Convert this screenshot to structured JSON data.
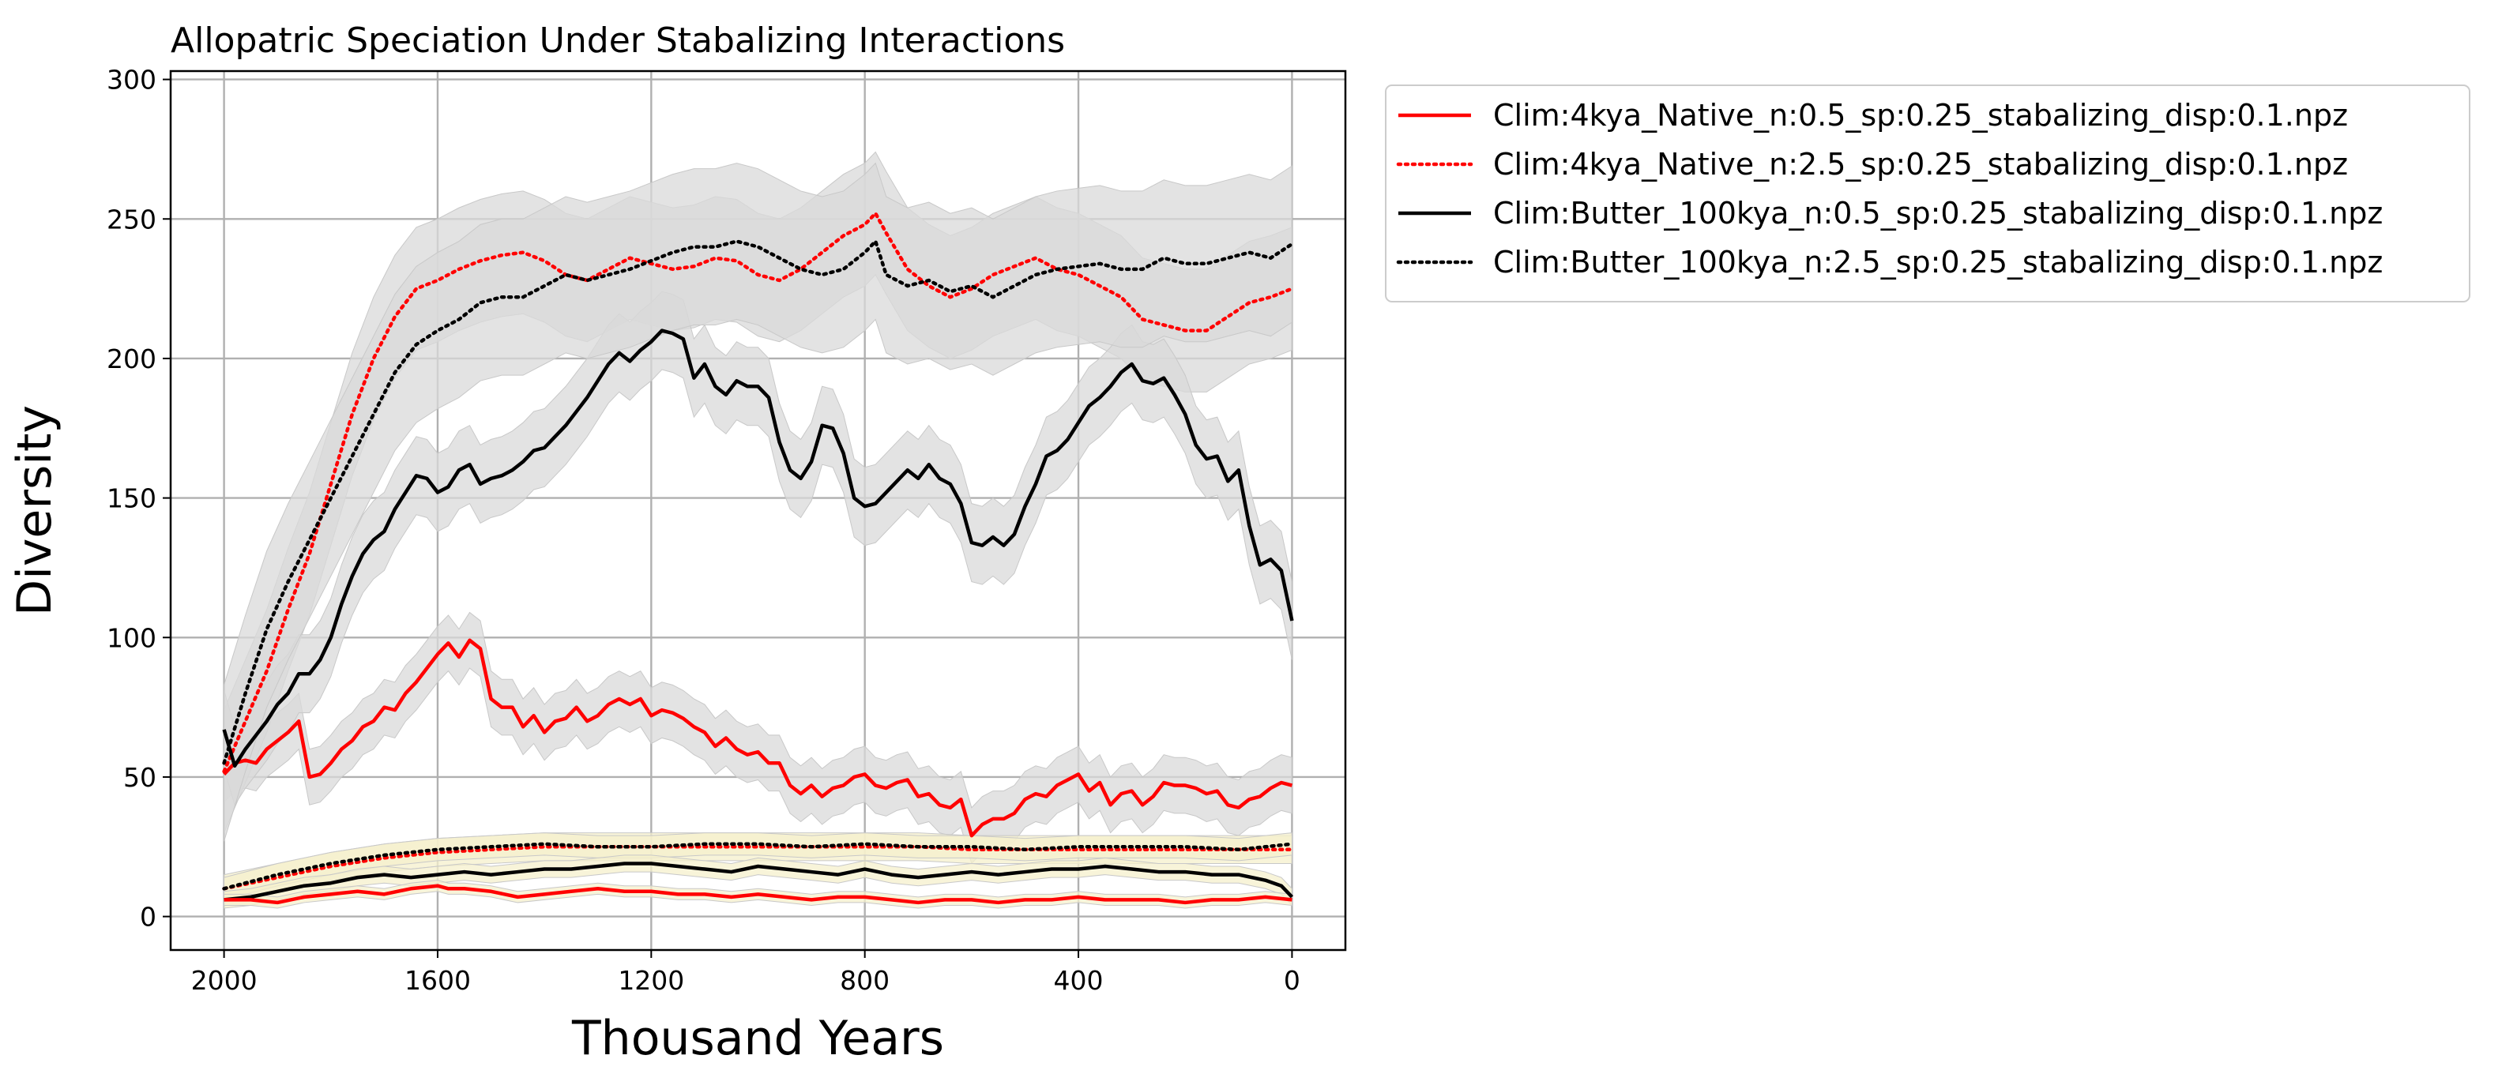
{
  "chart_data": {
    "type": "line",
    "title": "Allopatric Speciation Under Stabalizing Interactions",
    "xlabel": "Thousand Years",
    "ylabel": "Diversity",
    "xlim": [
      2100,
      -100
    ],
    "ylim": [
      -12,
      303
    ],
    "x_reversed": true,
    "xticks": [
      2000,
      1600,
      1200,
      800,
      400,
      0
    ],
    "yticks": [
      0,
      50,
      100,
      150,
      200,
      250,
      300
    ],
    "grid": true,
    "legend_position": "outside-right-top",
    "series": [
      {
        "name": "Clim:4kya_Native_n:0.5_sp:0.25_stabalizing_disp:0.1.npz",
        "color": "#ff0000",
        "style": "solid",
        "band_color": "#d9d9d9",
        "band_width": 10,
        "x": [
          2000,
          1980,
          1960,
          1940,
          1920,
          1900,
          1880,
          1860,
          1840,
          1820,
          1800,
          1780,
          1760,
          1740,
          1720,
          1700,
          1680,
          1660,
          1640,
          1620,
          1600,
          1580,
          1560,
          1540,
          1520,
          1500,
          1480,
          1460,
          1440,
          1420,
          1400,
          1380,
          1360,
          1340,
          1320,
          1300,
          1280,
          1260,
          1240,
          1220,
          1200,
          1180,
          1160,
          1140,
          1120,
          1100,
          1080,
          1060,
          1040,
          1020,
          1000,
          980,
          960,
          940,
          920,
          900,
          880,
          860,
          840,
          820,
          800,
          780,
          760,
          740,
          720,
          700,
          680,
          660,
          640,
          620,
          600,
          580,
          560,
          540,
          520,
          500,
          480,
          460,
          440,
          420,
          400,
          380,
          360,
          340,
          320,
          300,
          280,
          260,
          240,
          220,
          200,
          180,
          160,
          140,
          120,
          100,
          80,
          60,
          40,
          20,
          0
        ],
        "values": [
          51,
          55,
          56,
          55,
          60,
          63,
          66,
          70,
          50,
          51,
          55,
          60,
          63,
          68,
          70,
          75,
          74,
          80,
          84,
          89,
          94,
          98,
          93,
          99,
          96,
          78,
          75,
          75,
          68,
          72,
          66,
          70,
          71,
          75,
          70,
          72,
          76,
          78,
          76,
          78,
          72,
          74,
          73,
          71,
          68,
          66,
          61,
          64,
          60,
          58,
          59,
          55,
          55,
          47,
          44,
          47,
          43,
          46,
          47,
          50,
          51,
          47,
          46,
          48,
          49,
          43,
          44,
          40,
          39,
          42,
          29,
          33,
          35,
          35,
          37,
          42,
          44,
          43,
          47,
          49,
          51,
          45,
          48,
          40,
          44,
          45,
          40,
          43,
          48,
          47,
          47,
          46,
          44,
          45,
          40,
          39,
          42,
          43,
          46,
          48,
          47
        ]
      },
      {
        "name": "Clim:4kya_Native_n:2.5_sp:0.25_stabalizing_disp:0.1.npz",
        "color": "#ff0000",
        "style": "dotted",
        "band_color": "#d9d9d9",
        "band_width": 22,
        "x": [
          2000,
          1960,
          1920,
          1880,
          1840,
          1800,
          1760,
          1720,
          1680,
          1640,
          1600,
          1560,
          1520,
          1480,
          1440,
          1400,
          1360,
          1320,
          1280,
          1240,
          1200,
          1160,
          1120,
          1080,
          1040,
          1000,
          960,
          920,
          880,
          840,
          800,
          780,
          760,
          720,
          680,
          640,
          600,
          560,
          520,
          480,
          440,
          400,
          360,
          320,
          280,
          240,
          200,
          160,
          120,
          80,
          40,
          0
        ],
        "values": [
          52,
          70,
          88,
          110,
          130,
          155,
          180,
          200,
          215,
          225,
          228,
          232,
          235,
          237,
          238,
          235,
          230,
          228,
          232,
          236,
          234,
          232,
          233,
          236,
          235,
          230,
          228,
          232,
          238,
          244,
          248,
          252,
          245,
          232,
          226,
          222,
          225,
          230,
          233,
          236,
          232,
          230,
          226,
          222,
          214,
          212,
          210,
          210,
          215,
          220,
          222,
          225
        ]
      },
      {
        "name": "Clim:Butter_100kya_n:0.5_sp:0.25_stabalizing_disp:0.1.npz",
        "color": "#000000",
        "style": "solid",
        "band_color": "#d9d9d9",
        "band_width": 14,
        "x": [
          2000,
          1980,
          1960,
          1940,
          1920,
          1900,
          1880,
          1860,
          1840,
          1820,
          1800,
          1780,
          1760,
          1740,
          1720,
          1700,
          1680,
          1660,
          1640,
          1620,
          1600,
          1580,
          1560,
          1540,
          1520,
          1500,
          1480,
          1460,
          1440,
          1420,
          1400,
          1380,
          1360,
          1340,
          1320,
          1300,
          1280,
          1260,
          1240,
          1220,
          1200,
          1180,
          1160,
          1140,
          1120,
          1100,
          1080,
          1060,
          1040,
          1020,
          1000,
          980,
          960,
          940,
          920,
          900,
          880,
          860,
          840,
          820,
          800,
          780,
          760,
          740,
          720,
          700,
          680,
          660,
          640,
          620,
          600,
          580,
          560,
          540,
          520,
          500,
          480,
          460,
          440,
          420,
          400,
          380,
          360,
          340,
          320,
          300,
          280,
          260,
          240,
          220,
          200,
          180,
          160,
          140,
          120,
          100,
          80,
          60,
          40,
          20,
          0
        ],
        "values": [
          67,
          54,
          60,
          65,
          70,
          76,
          80,
          87,
          87,
          92,
          100,
          112,
          122,
          130,
          135,
          138,
          146,
          152,
          158,
          157,
          152,
          154,
          160,
          162,
          155,
          157,
          158,
          160,
          163,
          167,
          168,
          172,
          176,
          181,
          186,
          192,
          198,
          202,
          199,
          203,
          206,
          210,
          209,
          207,
          193,
          198,
          190,
          187,
          192,
          190,
          190,
          186,
          170,
          160,
          157,
          163,
          176,
          175,
          166,
          150,
          147,
          148,
          152,
          156,
          160,
          157,
          162,
          157,
          155,
          148,
          134,
          133,
          136,
          133,
          137,
          147,
          155,
          165,
          167,
          171,
          177,
          183,
          186,
          190,
          195,
          198,
          192,
          191,
          193,
          187,
          180,
          169,
          164,
          165,
          156,
          160,
          140,
          126,
          128,
          124,
          106
        ]
      },
      {
        "name": "Clim:Butter_100kya_n:2.5_sp:0.25_stabalizing_disp:0.1.npz",
        "color": "#000000",
        "style": "dotted",
        "band_color": "#d9d9d9",
        "band_width": 28,
        "x": [
          2000,
          1960,
          1920,
          1880,
          1840,
          1800,
          1760,
          1720,
          1680,
          1640,
          1600,
          1560,
          1520,
          1480,
          1440,
          1400,
          1360,
          1320,
          1280,
          1240,
          1200,
          1160,
          1120,
          1080,
          1040,
          1000,
          960,
          920,
          880,
          840,
          800,
          780,
          760,
          720,
          680,
          640,
          600,
          560,
          520,
          480,
          440,
          400,
          360,
          320,
          280,
          240,
          200,
          160,
          120,
          80,
          40,
          0
        ],
        "values": [
          55,
          80,
          103,
          120,
          135,
          150,
          165,
          180,
          195,
          205,
          210,
          214,
          220,
          222,
          222,
          226,
          230,
          228,
          230,
          232,
          235,
          238,
          240,
          240,
          242,
          240,
          236,
          232,
          230,
          232,
          238,
          242,
          230,
          226,
          228,
          224,
          226,
          222,
          226,
          230,
          232,
          233,
          234,
          232,
          232,
          236,
          234,
          234,
          236,
          238,
          236,
          241
        ]
      },
      {
        "name": "",
        "legend": false,
        "color": "#ff0000",
        "style": "dotted",
        "band_color": "#f5f0cc",
        "band_width": 5,
        "x": [
          2000,
          1900,
          1800,
          1700,
          1600,
          1500,
          1400,
          1300,
          1200,
          1100,
          1000,
          900,
          800,
          700,
          600,
          500,
          400,
          300,
          200,
          100,
          0
        ],
        "values": [
          10,
          14,
          18,
          21,
          23,
          24,
          25,
          25,
          25,
          25,
          25,
          25,
          25,
          25,
          24,
          24,
          24,
          24,
          24,
          24,
          24
        ]
      },
      {
        "name": "",
        "legend": false,
        "color": "#000000",
        "style": "dotted",
        "band_color": "#f5f0cc",
        "band_width": 4,
        "x": [
          2000,
          1900,
          1800,
          1700,
          1600,
          1500,
          1400,
          1300,
          1200,
          1100,
          1000,
          900,
          800,
          700,
          600,
          500,
          400,
          300,
          200,
          100,
          0
        ],
        "values": [
          10,
          15,
          19,
          22,
          24,
          25,
          26,
          25,
          25,
          26,
          26,
          25,
          26,
          25,
          25,
          24,
          25,
          25,
          25,
          24,
          26
        ]
      },
      {
        "name": "",
        "legend": false,
        "color": "#000000",
        "style": "solid",
        "band_color": "#f5f0cc",
        "band_width": 3,
        "x": [
          2000,
          1950,
          1900,
          1850,
          1800,
          1750,
          1700,
          1650,
          1600,
          1550,
          1500,
          1450,
          1400,
          1350,
          1300,
          1250,
          1200,
          1150,
          1100,
          1050,
          1000,
          950,
          900,
          850,
          800,
          750,
          700,
          650,
          600,
          550,
          500,
          450,
          400,
          350,
          300,
          250,
          200,
          150,
          100,
          50,
          20,
          0
        ],
        "values": [
          6,
          7,
          9,
          11,
          12,
          14,
          15,
          14,
          15,
          16,
          15,
          16,
          17,
          17,
          18,
          19,
          19,
          18,
          17,
          16,
          18,
          17,
          16,
          15,
          17,
          15,
          14,
          15,
          16,
          15,
          16,
          17,
          17,
          18,
          17,
          16,
          16,
          15,
          15,
          13,
          11,
          7
        ]
      },
      {
        "name": "",
        "legend": false,
        "color": "#ff0000",
        "style": "solid",
        "band_color": "#f5f0cc",
        "band_width": 2,
        "x": [
          2000,
          1950,
          1900,
          1850,
          1800,
          1750,
          1700,
          1650,
          1600,
          1580,
          1550,
          1500,
          1450,
          1400,
          1350,
          1300,
          1250,
          1200,
          1150,
          1100,
          1050,
          1000,
          950,
          900,
          850,
          800,
          750,
          700,
          650,
          600,
          550,
          500,
          450,
          400,
          350,
          300,
          250,
          200,
          150,
          100,
          50,
          0
        ],
        "values": [
          6,
          6,
          5,
          7,
          8,
          9,
          8,
          10,
          11,
          10,
          10,
          9,
          7,
          8,
          9,
          10,
          9,
          9,
          8,
          8,
          7,
          8,
          7,
          6,
          7,
          7,
          6,
          5,
          6,
          6,
          5,
          6,
          6,
          7,
          6,
          6,
          6,
          5,
          6,
          6,
          7,
          6
        ]
      }
    ]
  }
}
